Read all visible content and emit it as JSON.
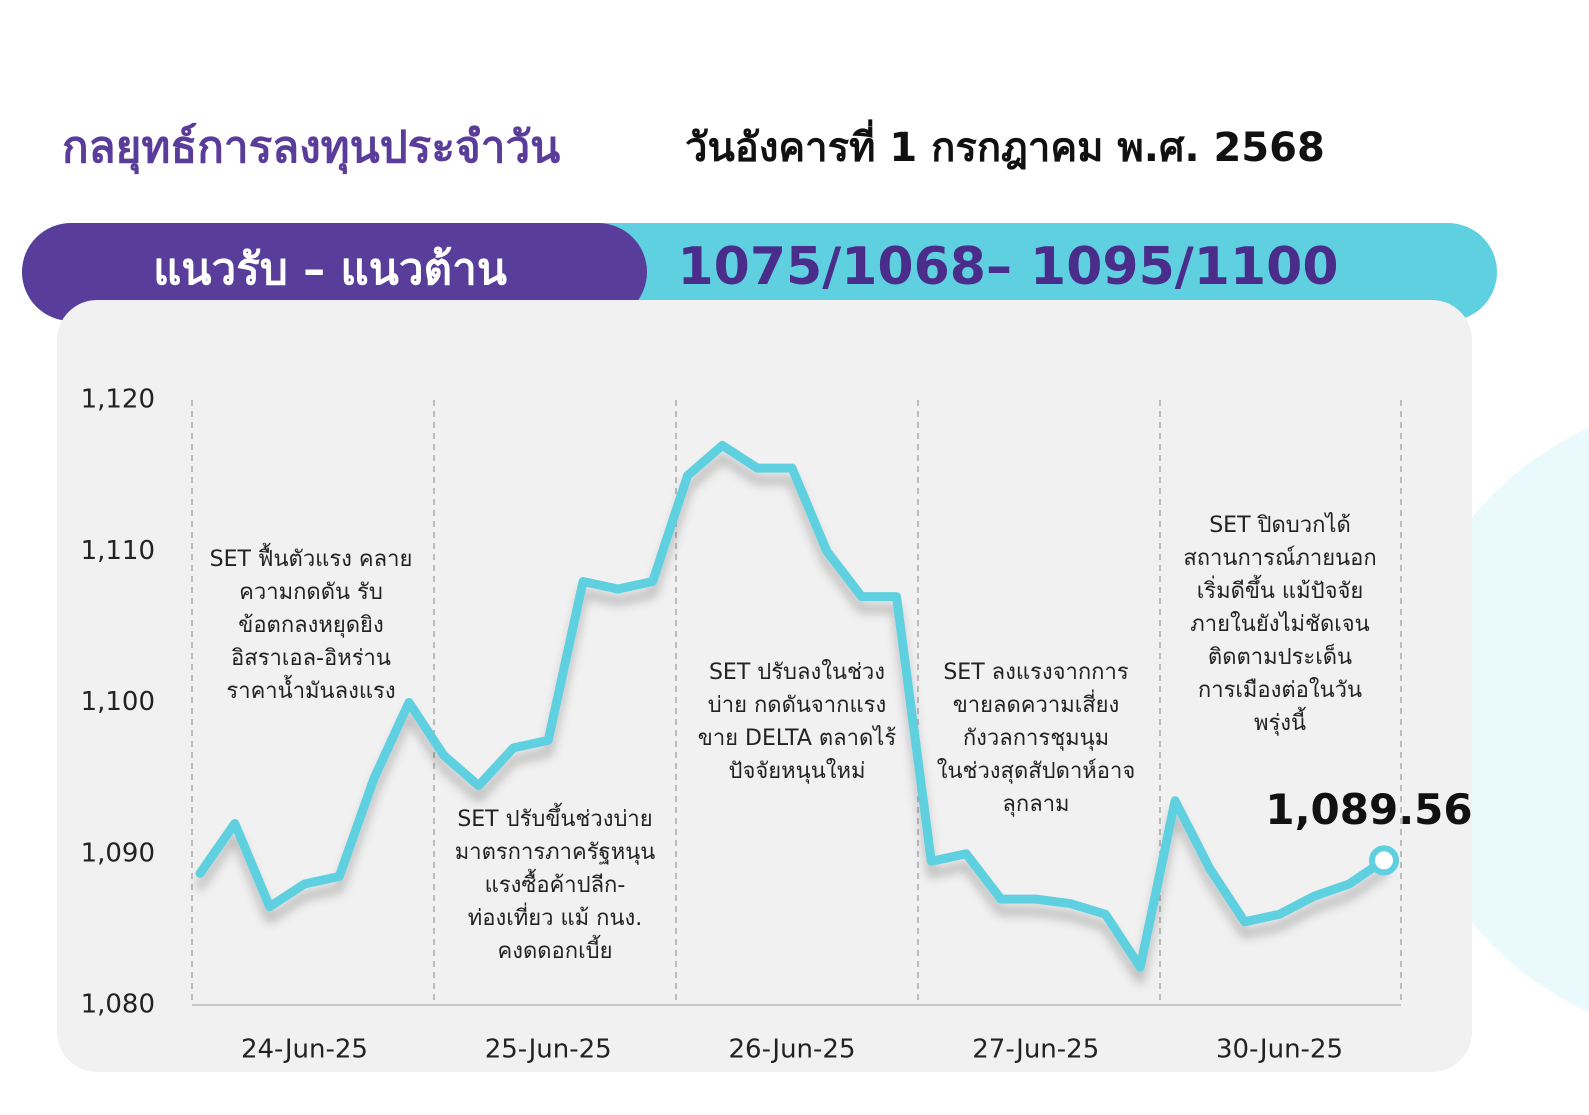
{
  "header": {
    "title": "กลยุทธ์การลงทุนประจำวัน",
    "date": "วันอังคารที่ 1 กรกฎาคม พ.ศ. 2568"
  },
  "banner": {
    "label": "แนวรับ – แนวต้าน",
    "levels": "1075/1068– 1095/1100"
  },
  "chart_data": {
    "type": "line",
    "categories": [
      null,
      null,
      null,
      "24-Jun-25",
      null,
      null,
      null,
      null,
      null,
      null,
      "25-Jun-25",
      null,
      null,
      null,
      null,
      null,
      null,
      "26-Jun-25",
      null,
      null,
      null,
      null,
      null,
      null,
      "27-Jun-25",
      null,
      null,
      null,
      null,
      null,
      null,
      "30-Jun-25",
      null,
      null,
      null
    ],
    "values": [
      1088.7,
      1092,
      1086.5,
      1088,
      1088.5,
      1095,
      1100,
      1096.5,
      1094.5,
      1097,
      1097.5,
      1108,
      1107.5,
      1108,
      1115,
      1117,
      1115.5,
      1115.5,
      1110,
      1107,
      1107,
      1089.5,
      1090,
      1087,
      1087,
      1086.7,
      1086,
      1082.5,
      1093.5,
      1089,
      1085.5,
      1086,
      1087.2,
      1088,
      1089.56
    ],
    "value_labels": [
      null,
      null,
      null,
      null,
      null,
      null,
      null,
      null,
      null,
      null,
      null,
      null,
      null,
      null,
      null,
      null,
      null,
      null,
      null,
      null,
      null,
      null,
      null,
      null,
      null,
      null,
      null,
      null,
      null,
      null,
      null,
      null,
      null,
      null,
      "1,089.56"
    ],
    "color": "#5fd0df",
    "ylim": [
      1080,
      1120
    ],
    "yticks": [
      {
        "value": 1080,
        "label": "1,080"
      },
      {
        "value": 1090,
        "label": "1,090"
      },
      {
        "value": 1100,
        "label": "1,100"
      },
      {
        "value": 1110,
        "label": "1,110"
      },
      {
        "value": 1120,
        "label": "1,120"
      }
    ],
    "annotations": [
      [
        "SET ฟื้นตัวแรง คลาย",
        "ความกดดัน รับ",
        "ข้อตกลงหยุดยิง",
        "อิสราเอล-อิหร่าน",
        "ราคาน้ำมันลงแรง"
      ],
      [
        "SET ปรับขึ้นช่วงบ่าย",
        "มาตรการภาครัฐหนุน",
        "แรงซื้อค้าปลีก-",
        "ท่องเที่ยว แม้ กนง.",
        "คงดดอกเบี้ย"
      ],
      [
        "SET ปรับลงในช่วง",
        "บ่าย กดดันจากแรง",
        "ขาย DELTA ตลาดไร้",
        "ปัจจัยหนุนใหม่"
      ],
      [
        "SET ลงแรงจากการ",
        "ขายลดความเสี่ยง",
        "กังวลการชุมนุม",
        "ในช่วงสุดสัปดาห์อาจ",
        "ลุกลาม"
      ],
      [
        "SET ปิดบวกได้",
        "สถานการณ์ภายนอก",
        "เริ่มดีขึ้น แม้ปัจจัย",
        "ภายในยังไม่ชัดเจน",
        "ติดตามประเด็น",
        "การเมืองต่อในวัน",
        "พรุ่งนี้"
      ]
    ]
  }
}
